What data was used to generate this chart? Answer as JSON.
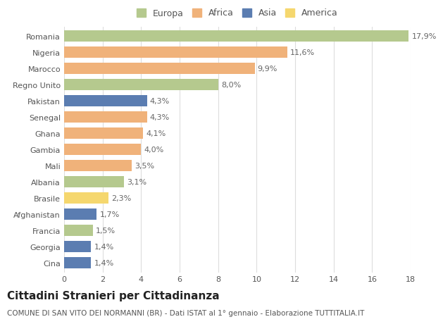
{
  "countries": [
    "Romania",
    "Nigeria",
    "Marocco",
    "Regno Unito",
    "Pakistan",
    "Senegal",
    "Ghana",
    "Gambia",
    "Mali",
    "Albania",
    "Brasile",
    "Afghanistan",
    "Francia",
    "Georgia",
    "Cina"
  ],
  "values": [
    17.9,
    11.6,
    9.9,
    8.0,
    4.3,
    4.3,
    4.1,
    4.0,
    3.5,
    3.1,
    2.3,
    1.7,
    1.5,
    1.4,
    1.4
  ],
  "labels": [
    "17,9%",
    "11,6%",
    "9,9%",
    "8,0%",
    "4,3%",
    "4,3%",
    "4,1%",
    "4,0%",
    "3,5%",
    "3,1%",
    "2,3%",
    "1,7%",
    "1,5%",
    "1,4%",
    "1,4%"
  ],
  "continents": [
    "Europa",
    "Africa",
    "Africa",
    "Europa",
    "Asia",
    "Africa",
    "Africa",
    "Africa",
    "Africa",
    "Europa",
    "America",
    "Asia",
    "Europa",
    "Asia",
    "Asia"
  ],
  "colors": {
    "Europa": "#b5c98e",
    "Africa": "#f0b27a",
    "Asia": "#5b7db1",
    "America": "#f5d76e"
  },
  "legend_order": [
    "Europa",
    "Africa",
    "Asia",
    "America"
  ],
  "legend_colors": [
    "#b5c98e",
    "#f0b27a",
    "#5b7db1",
    "#f5d76e"
  ],
  "title": "Cittadini Stranieri per Cittadinanza",
  "subtitle": "COMUNE DI SAN VITO DEI NORMANNI (BR) - Dati ISTAT al 1° gennaio - Elaborazione TUTTITALIA.IT",
  "xlim": [
    0,
    18
  ],
  "xticks": [
    0,
    2,
    4,
    6,
    8,
    10,
    12,
    14,
    16,
    18
  ],
  "background_color": "#ffffff",
  "grid_color": "#dddddd",
  "bar_height": 0.68,
  "label_fontsize": 8.0,
  "tick_fontsize": 8.0,
  "title_fontsize": 11,
  "subtitle_fontsize": 7.5
}
